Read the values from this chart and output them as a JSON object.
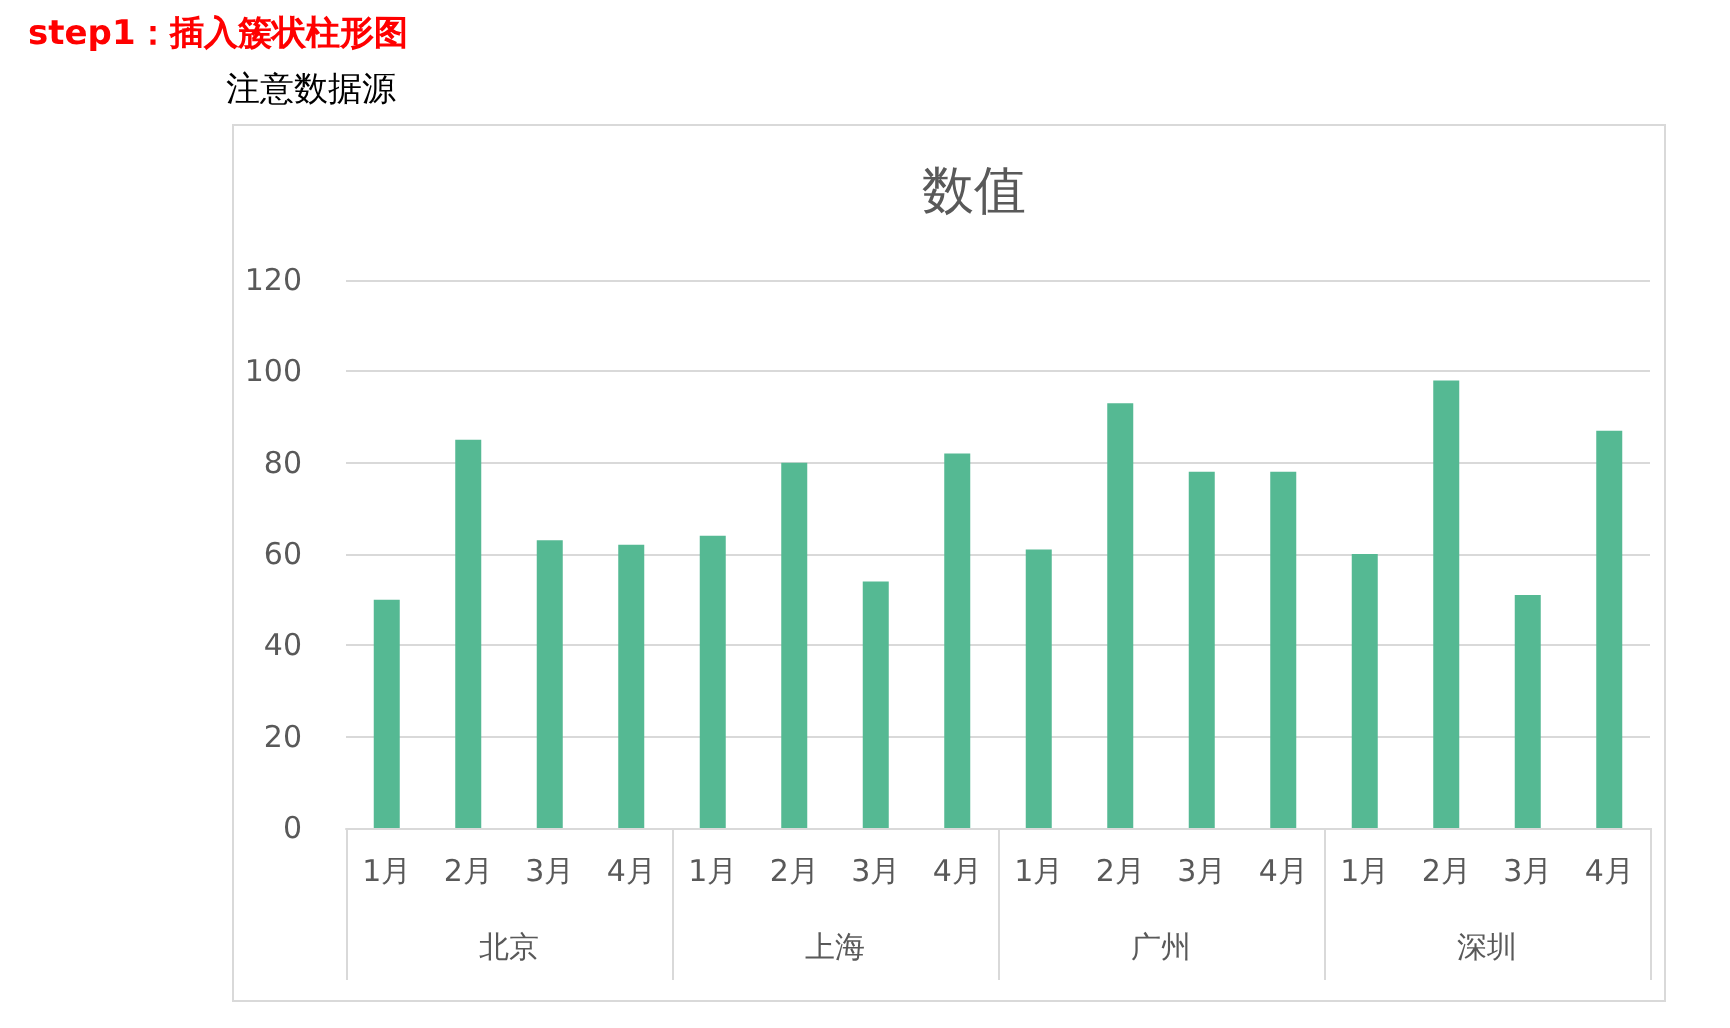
{
  "chart_data": {
    "type": "bar",
    "title": "数值",
    "categories": [
      "1月",
      "2月",
      "3月",
      "4月",
      "1月",
      "2月",
      "3月",
      "4月",
      "1月",
      "2月",
      "3月",
      "4月",
      "1月",
      "2月",
      "3月",
      "4月"
    ],
    "values": [
      50,
      85,
      63,
      62,
      64,
      80,
      54,
      82,
      61,
      93,
      78,
      78,
      60,
      98,
      51,
      87
    ],
    "color": "#55b993",
    "ylim": [
      0,
      120
    ],
    "yticks": [
      0,
      20,
      40,
      60,
      80,
      100,
      120
    ],
    "grid": "y",
    "annotations": [
      "step1：插入簇状柱形图",
      "注意数据源",
      "北京",
      "上海",
      "广州",
      "深圳"
    ]
  }
}
